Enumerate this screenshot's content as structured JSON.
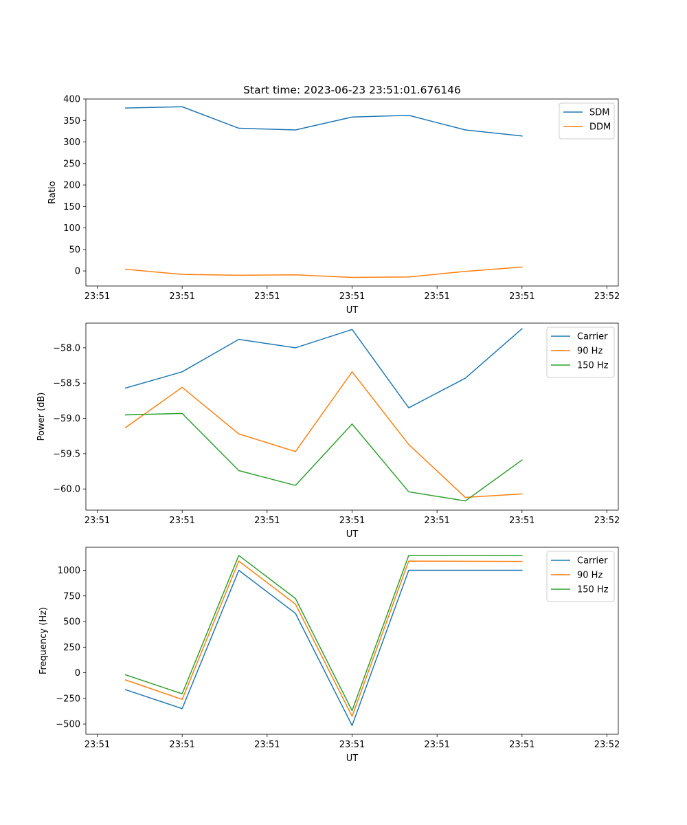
{
  "figure": {
    "title": "Start time: 2023-06-23 23:51:01.676146"
  },
  "chart_data": [
    {
      "type": "line",
      "title": "Start time: 2023-06-23 23:51:01.676146",
      "xlabel": "UT",
      "ylabel": "Ratio",
      "x_tick_labels": [
        "23:51",
        "23:51",
        "23:51",
        "23:51",
        "23:51",
        "23:51",
        "23:52"
      ],
      "x_index_range": [
        -0.7,
        8.7
      ],
      "ylim": [
        -35,
        400
      ],
      "yticks": [
        0,
        50,
        100,
        150,
        200,
        250,
        300,
        350,
        400
      ],
      "ytick_labels": [
        "0",
        "50",
        "100",
        "150",
        "200",
        "250",
        "300",
        "350",
        "400"
      ],
      "grid": false,
      "legend": "top-right",
      "series": [
        {
          "name": "SDM",
          "color": "#1f77b4",
          "values": [
            379,
            382,
            332,
            328,
            358,
            362,
            328,
            314
          ]
        },
        {
          "name": "DDM",
          "color": "#ff7f0e",
          "values": [
            4,
            -8,
            -10,
            -9,
            -15,
            -14,
            -1,
            9
          ]
        }
      ]
    },
    {
      "type": "line",
      "xlabel": "UT",
      "ylabel": "Power (dB)",
      "x_tick_labels": [
        "23:51",
        "23:51",
        "23:51",
        "23:51",
        "23:51",
        "23:51",
        "23:52"
      ],
      "x_index_range": [
        -0.7,
        8.7
      ],
      "ylim": [
        -60.3,
        -57.65
      ],
      "yticks": [
        -60.0,
        -59.5,
        -59.0,
        -58.5,
        -58.0
      ],
      "ytick_labels": [
        "−60.0",
        "−59.5",
        "−59.0",
        "−58.5",
        "−58.0"
      ],
      "grid": false,
      "legend": "top-right",
      "series": [
        {
          "name": "Carrier",
          "color": "#1f77b4",
          "values": [
            -58.57,
            -58.34,
            -57.88,
            -58.0,
            -57.74,
            -58.85,
            -58.43,
            -57.73
          ]
        },
        {
          "name": "90 Hz",
          "color": "#ff7f0e",
          "values": [
            -59.13,
            -58.56,
            -59.22,
            -59.47,
            -58.34,
            -59.37,
            -60.12,
            -60.07
          ]
        },
        {
          "name": "150 Hz",
          "color": "#2ca02c",
          "values": [
            -58.95,
            -58.93,
            -59.74,
            -59.95,
            -59.08,
            -60.04,
            -60.17,
            -59.59
          ]
        }
      ]
    },
    {
      "type": "line",
      "xlabel": "UT",
      "ylabel": "Frequency (Hz)",
      "x_tick_labels": [
        "23:51",
        "23:51",
        "23:51",
        "23:51",
        "23:51",
        "23:51",
        "23:52"
      ],
      "x_index_range": [
        -0.7,
        8.7
      ],
      "ylim": [
        -600,
        1225
      ],
      "yticks": [
        -500,
        -250,
        0,
        250,
        500,
        750,
        1000
      ],
      "ytick_labels": [
        "−500",
        "−250",
        "0",
        "250",
        "500",
        "750",
        "1000"
      ],
      "grid": false,
      "legend": "top-right",
      "series": [
        {
          "name": "Carrier",
          "color": "#1f77b4",
          "values": [
            -165,
            -350,
            1000,
            580,
            -515,
            1000,
            1000,
            1000
          ]
        },
        {
          "name": "90 Hz",
          "color": "#ff7f0e",
          "values": [
            -70,
            -260,
            1090,
            670,
            -425,
            1090,
            1088,
            1087
          ]
        },
        {
          "name": "150 Hz",
          "color": "#2ca02c",
          "values": [
            -20,
            -205,
            1145,
            725,
            -370,
            1145,
            1146,
            1144
          ]
        }
      ]
    }
  ]
}
